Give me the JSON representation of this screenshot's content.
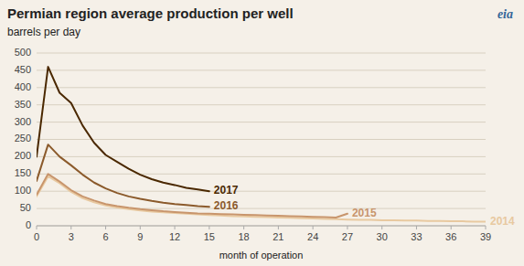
{
  "chart_data": {
    "type": "line",
    "title": "Permian region average production per well",
    "subtitle": "barrels per day",
    "x_label": "month of operation",
    "annotations": [
      "eia"
    ],
    "xlim": [
      0,
      39
    ],
    "ylim": [
      0,
      500
    ],
    "xticks": [
      0,
      3,
      6,
      9,
      12,
      15,
      18,
      21,
      24,
      27,
      30,
      33,
      36,
      39
    ],
    "yticks": [
      0,
      50,
      100,
      150,
      200,
      250,
      300,
      350,
      400,
      450,
      500
    ],
    "grid": true,
    "series": [
      {
        "name": "2014",
        "color": "#E8C9A0",
        "x": [
          0,
          1,
          2,
          3,
          4,
          5,
          6,
          7,
          8,
          9,
          10,
          11,
          12,
          13,
          14,
          15,
          16,
          17,
          18,
          19,
          20,
          21,
          22,
          23,
          24,
          25,
          26,
          27,
          28,
          29,
          30,
          31,
          32,
          33,
          34,
          35,
          36,
          37,
          38,
          39
        ],
        "values": [
          85,
          143,
          123,
          98,
          80,
          68,
          59,
          53,
          48,
          44,
          41,
          39,
          37,
          35,
          33,
          31,
          30,
          28,
          27,
          26,
          25,
          24,
          23,
          22,
          21,
          20,
          19,
          18,
          17,
          17,
          16,
          16,
          15,
          15,
          14,
          14,
          13,
          13,
          12,
          12
        ]
      },
      {
        "name": "2015",
        "color": "#C8956C",
        "x": [
          0,
          1,
          2,
          3,
          4,
          5,
          6,
          7,
          8,
          9,
          10,
          11,
          12,
          13,
          14,
          15,
          16,
          17,
          18,
          19,
          20,
          21,
          22,
          23,
          24,
          25,
          26,
          27
        ],
        "values": [
          90,
          150,
          128,
          103,
          85,
          73,
          63,
          57,
          52,
          48,
          45,
          42,
          40,
          38,
          36,
          35,
          34,
          33,
          32,
          31,
          30,
          29,
          28,
          27,
          26,
          25,
          24,
          35
        ]
      },
      {
        "name": "2016",
        "color": "#8B5A2B",
        "x": [
          0,
          1,
          2,
          3,
          4,
          5,
          6,
          7,
          8,
          9,
          10,
          11,
          12,
          13,
          14,
          15
        ],
        "values": [
          130,
          235,
          200,
          175,
          148,
          125,
          108,
          95,
          85,
          78,
          72,
          67,
          63,
          60,
          57,
          55
        ]
      },
      {
        "name": "2017",
        "color": "#4a2800",
        "x": [
          0,
          1,
          2,
          3,
          4,
          5,
          6,
          7,
          8,
          9,
          10,
          11,
          12,
          13,
          14,
          15
        ],
        "values": [
          200,
          460,
          385,
          355,
          290,
          240,
          205,
          185,
          165,
          148,
          135,
          125,
          118,
          110,
          105,
          100
        ]
      }
    ]
  }
}
